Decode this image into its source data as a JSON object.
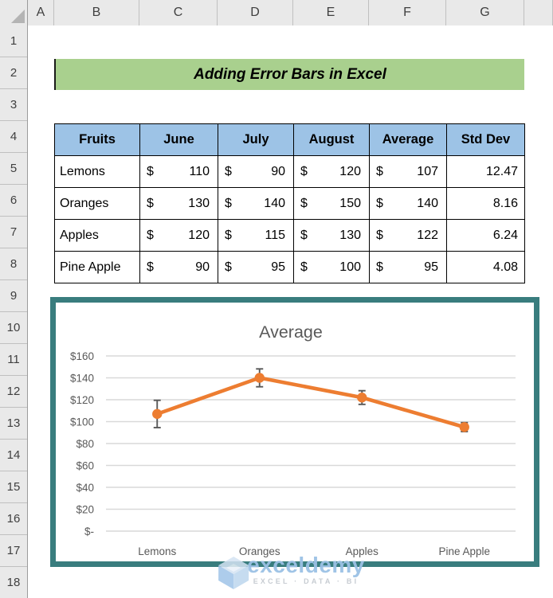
{
  "sheet": {
    "column_headers": [
      "A",
      "B",
      "C",
      "D",
      "E",
      "F",
      "G"
    ],
    "row_headers": [
      "1",
      "2",
      "3",
      "4",
      "5",
      "6",
      "7",
      "8",
      "9",
      "10",
      "11",
      "12",
      "13",
      "14",
      "15",
      "16",
      "17",
      "18"
    ]
  },
  "banner": {
    "title": "Adding Error Bars in Excel",
    "bg_color": "#A9D08E"
  },
  "table": {
    "headers": [
      "Fruits",
      "June",
      "July",
      "August",
      "Average",
      "Std Dev"
    ],
    "header_bg": "#9DC3E6",
    "currency_symbol": "$",
    "rows": [
      {
        "fruit": "Lemons",
        "june": "110",
        "july": "90",
        "august": "120",
        "average": "107",
        "std_dev": "12.47"
      },
      {
        "fruit": "Oranges",
        "june": "130",
        "july": "140",
        "august": "150",
        "average": "140",
        "std_dev": "8.16"
      },
      {
        "fruit": "Apples",
        "june": "120",
        "july": "115",
        "august": "130",
        "average": "122",
        "std_dev": "6.24"
      },
      {
        "fruit": "Pine Apple",
        "june": "90",
        "july": "95",
        "august": "100",
        "average": "95",
        "std_dev": "4.08"
      }
    ]
  },
  "chart_data": {
    "type": "line",
    "title": "Average",
    "categories": [
      "Lemons",
      "Oranges",
      "Apples",
      "Pine Apple"
    ],
    "series": [
      {
        "name": "Average",
        "values": [
          107,
          140,
          122,
          95
        ]
      }
    ],
    "error_bars": [
      12.47,
      8.16,
      6.24,
      4.08
    ],
    "y_ticks": [
      160,
      140,
      120,
      100,
      80,
      60,
      40,
      20,
      0
    ],
    "y_tick_labels": [
      "$160",
      "$140",
      "$120",
      "$100",
      "$80",
      "$60",
      "$40",
      "$20",
      "$-"
    ],
    "ylim": [
      0,
      160
    ],
    "grid": true,
    "legend": "none",
    "line_color": "#ED7D31",
    "marker_color": "#ED7D31",
    "error_bar_color": "#595959",
    "gridline_color": "#D9D9D9",
    "axis_text_color": "#595959",
    "title_color": "#595959",
    "border_color": "#397D7E"
  },
  "watermark": {
    "brand": "exceldemy",
    "tagline": "EXCEL · DATA · BI"
  }
}
